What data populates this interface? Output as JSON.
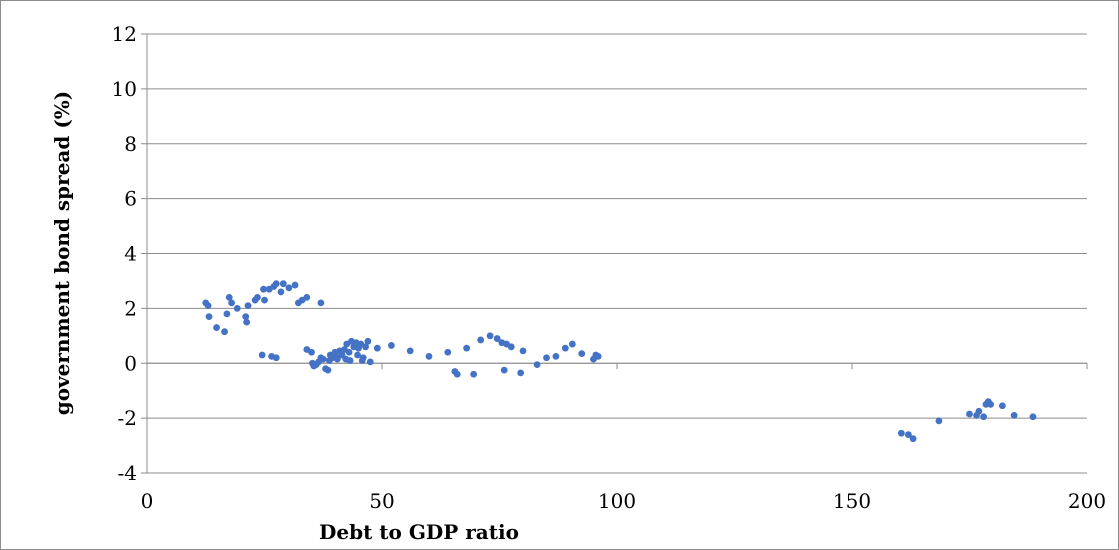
{
  "chart_data": {
    "type": "scatter",
    "title": "",
    "xlabel": "Debt to GDP ratio",
    "ylabel": "government bond  spread (%)",
    "xlim": [
      0,
      200
    ],
    "ylim": [
      -4,
      12
    ],
    "x_ticks": [
      0,
      50,
      100,
      150,
      200
    ],
    "y_ticks": [
      -4,
      -2,
      0,
      2,
      4,
      6,
      8,
      10,
      12
    ],
    "x_tick_labels": [
      "0",
      "50",
      "100",
      "150",
      "200"
    ],
    "y_tick_labels": [
      "-4",
      "-2",
      "0",
      "2",
      "4",
      "6",
      "8",
      "10",
      "12"
    ],
    "grid": "horizontal",
    "legend": "none",
    "marker_color": "#4472C4",
    "gridline_color": "#8c8c8c",
    "series": [
      {
        "points": [
          [
            12.5,
            2.2
          ],
          [
            13.0,
            2.1
          ],
          [
            13.2,
            1.7
          ],
          [
            14.8,
            1.3
          ],
          [
            16.5,
            1.15
          ],
          [
            17.0,
            1.8
          ],
          [
            17.5,
            2.4
          ],
          [
            18.0,
            2.2
          ],
          [
            19.2,
            2.0
          ],
          [
            21.0,
            1.7
          ],
          [
            21.2,
            1.5
          ],
          [
            21.5,
            2.1
          ],
          [
            23.0,
            2.3
          ],
          [
            23.5,
            2.4
          ],
          [
            24.8,
            2.7
          ],
          [
            25.0,
            2.3
          ],
          [
            26.0,
            2.7
          ],
          [
            27.0,
            2.8
          ],
          [
            27.5,
            2.9
          ],
          [
            28.5,
            2.6
          ],
          [
            29.0,
            2.9
          ],
          [
            30.2,
            2.75
          ],
          [
            31.5,
            2.85
          ],
          [
            32.2,
            2.2
          ],
          [
            33.0,
            2.3
          ],
          [
            34.0,
            2.4
          ],
          [
            37.0,
            2.2
          ],
          [
            24.5,
            0.3
          ],
          [
            26.5,
            0.25
          ],
          [
            27.5,
            0.2
          ],
          [
            34.0,
            0.5
          ],
          [
            35.0,
            0.4
          ],
          [
            35.2,
            0.0
          ],
          [
            35.5,
            -0.1
          ],
          [
            36.0,
            -0.05
          ],
          [
            36.5,
            0.05
          ],
          [
            37.0,
            0.2
          ],
          [
            37.5,
            0.15
          ],
          [
            38.0,
            -0.2
          ],
          [
            38.5,
            -0.25
          ],
          [
            38.8,
            0.1
          ],
          [
            39.0,
            0.3
          ],
          [
            39.5,
            0.2
          ],
          [
            40.0,
            0.4
          ],
          [
            40.2,
            0.25
          ],
          [
            40.5,
            0.15
          ],
          [
            41.0,
            0.45
          ],
          [
            41.5,
            0.3
          ],
          [
            42.0,
            0.5
          ],
          [
            42.3,
            0.15
          ],
          [
            42.5,
            0.7
          ],
          [
            43.0,
            0.4
          ],
          [
            43.2,
            0.1
          ],
          [
            43.5,
            0.8
          ],
          [
            44.0,
            0.6
          ],
          [
            44.5,
            0.75
          ],
          [
            44.8,
            0.3
          ],
          [
            45.0,
            0.55
          ],
          [
            45.5,
            0.7
          ],
          [
            45.8,
            0.1
          ],
          [
            46.0,
            0.2
          ],
          [
            46.5,
            0.6
          ],
          [
            47.0,
            0.8
          ],
          [
            47.5,
            0.05
          ],
          [
            49.0,
            0.55
          ],
          [
            52.0,
            0.65
          ],
          [
            56.0,
            0.45
          ],
          [
            60.0,
            0.25
          ],
          [
            64.0,
            0.4
          ],
          [
            65.5,
            -0.3
          ],
          [
            66.0,
            -0.4
          ],
          [
            68.0,
            0.55
          ],
          [
            69.5,
            -0.4
          ],
          [
            71.0,
            0.85
          ],
          [
            73.0,
            1.0
          ],
          [
            74.5,
            0.9
          ],
          [
            75.5,
            0.75
          ],
          [
            76.0,
            -0.25
          ],
          [
            76.5,
            0.7
          ],
          [
            77.5,
            0.6
          ],
          [
            79.5,
            -0.35
          ],
          [
            80.0,
            0.45
          ],
          [
            83.0,
            -0.05
          ],
          [
            85.0,
            0.2
          ],
          [
            87.0,
            0.25
          ],
          [
            89.0,
            0.55
          ],
          [
            90.5,
            0.7
          ],
          [
            92.5,
            0.35
          ],
          [
            95.0,
            0.15
          ],
          [
            95.5,
            0.3
          ],
          [
            96.0,
            0.25
          ],
          [
            160.5,
            -2.55
          ],
          [
            162.0,
            -2.6
          ],
          [
            163.0,
            -2.75
          ],
          [
            168.5,
            -2.1
          ],
          [
            175.0,
            -1.85
          ],
          [
            176.5,
            -1.9
          ],
          [
            177.0,
            -1.75
          ],
          [
            178.0,
            -1.95
          ],
          [
            178.5,
            -1.5
          ],
          [
            179.0,
            -1.4
          ],
          [
            179.5,
            -1.5
          ],
          [
            182.0,
            -1.55
          ],
          [
            184.5,
            -1.9
          ],
          [
            188.5,
            -1.95
          ]
        ]
      }
    ]
  }
}
